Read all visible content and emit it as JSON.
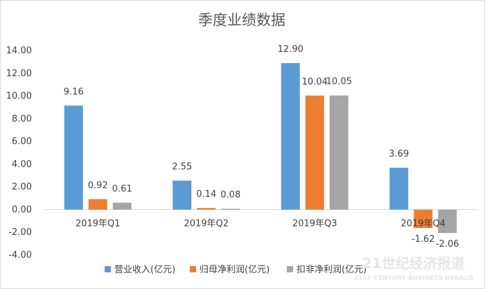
{
  "chart_data": {
    "type": "bar",
    "title": "季度业绩数据",
    "categories": [
      "2019年Q1",
      "2019年Q2",
      "2019年Q3",
      "2019年Q4"
    ],
    "series": [
      {
        "name": "营业收入(亿元)",
        "color": "#5b9bd5",
        "values": [
          9.16,
          2.55,
          12.9,
          3.69
        ],
        "labels": [
          "9.16",
          "2.55",
          "12.90",
          "3.69"
        ]
      },
      {
        "name": "归母净利润(亿元)",
        "color": "#ed7d31",
        "values": [
          0.92,
          0.14,
          10.04,
          -1.62
        ],
        "labels": [
          "0.92",
          "0.14",
          "10.04",
          "-1.62"
        ]
      },
      {
        "name": "扣非净利润(亿元)",
        "color": "#a5a5a5",
        "values": [
          0.61,
          0.08,
          10.05,
          -2.06
        ],
        "labels": [
          "0.61",
          "0.08",
          "10.05",
          "-2.06"
        ]
      }
    ],
    "yticks": [
      "14.00",
      "12.00",
      "10.00",
      "8.00",
      "6.00",
      "4.00",
      "2.00",
      "0.00",
      "-2.00",
      "-4.00"
    ],
    "ylim": [
      -4,
      14
    ],
    "grid": false,
    "legend_position": "bottom"
  },
  "watermark": {
    "line1": "21世纪经济报道",
    "line2": "21ST CENTURY BUSINESS HERALD"
  }
}
